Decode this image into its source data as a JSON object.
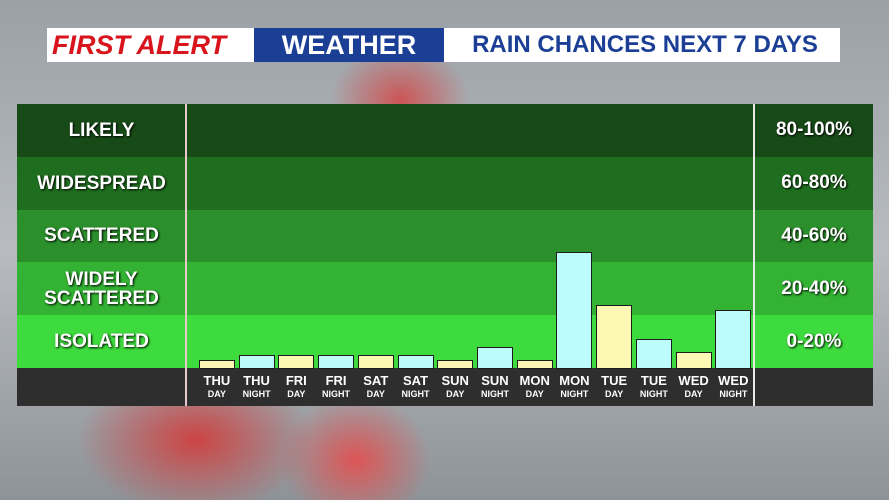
{
  "header": {
    "brand_1": "FIRST ALERT",
    "brand_2": "WEATHER"
  },
  "chart_data": {
    "type": "bar",
    "title": "RAIN CHANCES NEXT 7 DAYS",
    "categories": [
      "THU",
      "THU",
      "FRI",
      "FRI",
      "SAT",
      "SAT",
      "SUN",
      "SUN",
      "MON",
      "MON",
      "TUE",
      "TUE",
      "WED",
      "WED"
    ],
    "periods": [
      "DAY",
      "NIGHT",
      "DAY",
      "NIGHT",
      "DAY",
      "NIGHT",
      "DAY",
      "NIGHT",
      "DAY",
      "NIGHT",
      "DAY",
      "NIGHT",
      "DAY",
      "NIGHT"
    ],
    "values": [
      3,
      5,
      5,
      5,
      5,
      5,
      3,
      8,
      3,
      44,
      24,
      11,
      6,
      22
    ],
    "colors": [
      "#fdf9b4",
      "#bdfcfd",
      "#fdf9b4",
      "#bdfcfd",
      "#fdf9b4",
      "#bdfcfd",
      "#fdf9b4",
      "#bdfcfd",
      "#fdf9b4",
      "#bdfcfd",
      "#fdf9b4",
      "#bdfcfd",
      "#fdf9b4",
      "#bdfcfd"
    ],
    "ylim": [
      0,
      100
    ],
    "bands": [
      {
        "label": "LIKELY",
        "range": "80-100%",
        "from": 80,
        "to": 100,
        "color": "#174a17"
      },
      {
        "label": "WIDESPREAD",
        "range": "60-80%",
        "from": 60,
        "to": 80,
        "color": "#1f6e1f"
      },
      {
        "label": "SCATTERED",
        "range": "40-60%",
        "from": 40,
        "to": 60,
        "color": "#2b8f2b"
      },
      {
        "label": "WIDELY SCATTERED",
        "range": "20-40%",
        "from": 20,
        "to": 40,
        "color": "#33b233"
      },
      {
        "label": "ISOLATED",
        "range": "0-20%",
        "from": 0,
        "to": 20,
        "color": "#3ddb3d"
      }
    ]
  }
}
